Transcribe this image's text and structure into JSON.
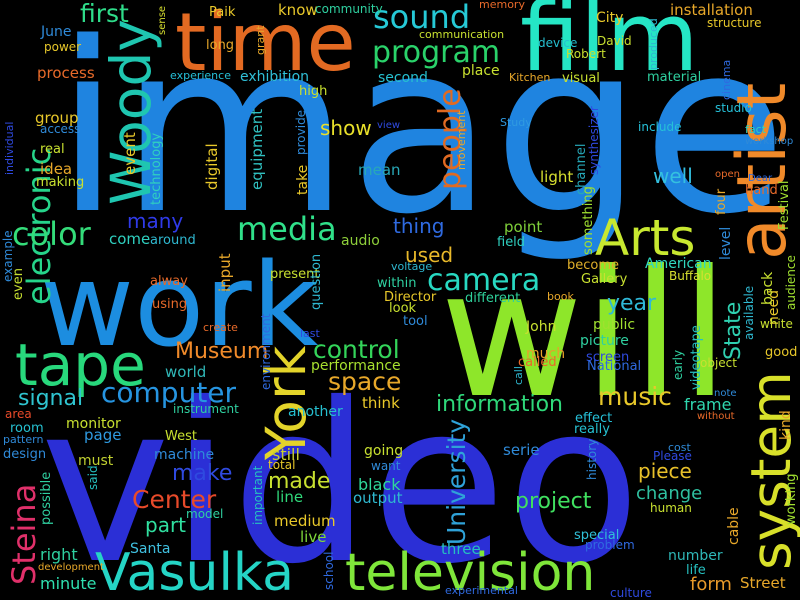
{
  "background": "#000000",
  "words": [
    {
      "text": "image",
      "color": "#1f84e0"
    },
    {
      "text": "video",
      "color": "#2b2fd6"
    },
    {
      "text": "will",
      "color": "#8ee62a"
    },
    {
      "text": "work",
      "color": "#1c8de0"
    },
    {
      "text": "film",
      "color": "#25e6c5"
    },
    {
      "text": "time",
      "color": "#e36a22"
    },
    {
      "text": "artist",
      "color": "#f08a2a"
    },
    {
      "text": "Vasulka",
      "color": "#25d5c6"
    },
    {
      "text": "television",
      "color": "#7fe63a"
    },
    {
      "text": "tape",
      "color": "#28d87c"
    },
    {
      "text": "Woody",
      "color": "#1fc6b0"
    },
    {
      "text": "York",
      "color": "#e3d42a"
    },
    {
      "text": "system",
      "color": "#d8e02a"
    },
    {
      "text": "Arts",
      "color": "#c8e830"
    },
    {
      "text": "electronic",
      "color": "#26d48a"
    },
    {
      "text": "media",
      "color": "#30e08a"
    },
    {
      "text": "sound",
      "color": "#26c9d6"
    },
    {
      "text": "program",
      "color": "#2ad26a"
    },
    {
      "text": "people",
      "color": "#e06a22"
    },
    {
      "text": "camera",
      "color": "#28d9c2"
    },
    {
      "text": "color",
      "color": "#34dc7a"
    },
    {
      "text": "Steina",
      "color": "#e0306a"
    },
    {
      "text": "computer",
      "color": "#2694e0"
    },
    {
      "text": "control",
      "color": "#34d45a"
    },
    {
      "text": "space",
      "color": "#e8a82a"
    },
    {
      "text": "music",
      "color": "#e8c82a"
    },
    {
      "text": "Center",
      "color": "#e84a2a"
    },
    {
      "text": "University",
      "color": "#2fa2d8"
    },
    {
      "text": "information",
      "color": "#2fd87a"
    },
    {
      "text": "project",
      "color": "#40e060"
    },
    {
      "text": "first",
      "color": "#2fdc8a"
    },
    {
      "text": "Museum",
      "color": "#f08a2a"
    },
    {
      "text": "signal",
      "color": "#2fc4d0"
    },
    {
      "text": "make",
      "color": "#2f4ae0"
    },
    {
      "text": "made",
      "color": "#c8e030"
    },
    {
      "text": "year",
      "color": "#2fb8d8"
    },
    {
      "text": "State",
      "color": "#2fd0b0"
    },
    {
      "text": "show",
      "color": "#e8e02a"
    },
    {
      "text": "thing",
      "color": "#2f6ae0"
    },
    {
      "text": "used",
      "color": "#e8b82a"
    },
    {
      "text": "well",
      "color": "#34c0e0"
    },
    {
      "text": "many",
      "color": "#2f3ae8"
    },
    {
      "text": "part",
      "color": "#30e0a0"
    },
    {
      "text": "frame",
      "color": "#30d8b0"
    },
    {
      "text": "piece",
      "color": "#e8c02a"
    },
    {
      "text": "change",
      "color": "#2fc0a0"
    },
    {
      "text": "form",
      "color": "#e89a2a"
    },
    {
      "text": "light",
      "color": "#d8e030"
    },
    {
      "text": "mean",
      "color": "#28a8b8"
    },
    {
      "text": "point",
      "color": "#7fd03a"
    },
    {
      "text": "audio",
      "color": "#8ecf3a"
    },
    {
      "text": "black",
      "color": "#2fd89a"
    },
    {
      "text": "output",
      "color": "#2fb8d0"
    },
    {
      "text": "still",
      "color": "#c8d030"
    },
    {
      "text": "line",
      "color": "#30d87a"
    },
    {
      "text": "medium",
      "color": "#e8c82a"
    },
    {
      "text": "live",
      "color": "#7fd83a"
    },
    {
      "text": "three",
      "color": "#26c0c0"
    },
    {
      "text": "Santa",
      "color": "#40c0e0"
    },
    {
      "text": "right",
      "color": "#2fd0a0"
    },
    {
      "text": "minute",
      "color": "#2fe0b0"
    },
    {
      "text": "machine",
      "color": "#2f8ad8"
    },
    {
      "text": "must",
      "color": "#c0d030"
    },
    {
      "text": "page",
      "color": "#2f9ae0"
    },
    {
      "text": "monitor",
      "color": "#c8e030"
    },
    {
      "text": "world",
      "color": "#30b8b8"
    },
    {
      "text": "performance",
      "color": "#a8e030"
    },
    {
      "text": "another",
      "color": "#26c0d0"
    },
    {
      "text": "think",
      "color": "#e8c82a"
    },
    {
      "text": "Director",
      "color": "#e8c82a"
    },
    {
      "text": "different",
      "color": "#2fd09a"
    },
    {
      "text": "John",
      "color": "#c8e030"
    },
    {
      "text": "much",
      "color": "#e8a02a"
    },
    {
      "text": "picture",
      "color": "#2fd0a0"
    },
    {
      "text": "public",
      "color": "#a0e030"
    },
    {
      "text": "screen",
      "color": "#2f4ae0"
    },
    {
      "text": "effect",
      "color": "#26c0d8"
    },
    {
      "text": "become",
      "color": "#e0b02a"
    },
    {
      "text": "American",
      "color": "#30d8c0"
    },
    {
      "text": "Buffalo",
      "color": "#d8e030"
    },
    {
      "text": "number",
      "color": "#2fb8b8"
    },
    {
      "text": "life",
      "color": "#26c0c0"
    },
    {
      "text": "Street",
      "color": "#e8a82a"
    },
    {
      "text": "sense",
      "color": "#d8e030"
    },
    {
      "text": "installation",
      "color": "#e8a82a"
    },
    {
      "text": "structure",
      "color": "#e8c82a"
    },
    {
      "text": "City",
      "color": "#e8c82a"
    },
    {
      "text": "David",
      "color": "#c8e030"
    },
    {
      "text": "Robert",
      "color": "#c8e030"
    },
    {
      "text": "device",
      "color": "#26c0d0"
    },
    {
      "text": "exhibition",
      "color": "#30c0d8"
    },
    {
      "text": "second",
      "color": "#26c0d0"
    },
    {
      "text": "place",
      "color": "#c8e030"
    },
    {
      "text": "Kitchen",
      "color": "#e8a82a"
    },
    {
      "text": "visual",
      "color": "#c8e030"
    },
    {
      "text": "material",
      "color": "#2fd0a0"
    },
    {
      "text": "include",
      "color": "#26c0d8"
    },
    {
      "text": "Study",
      "color": "#2f9ae0"
    },
    {
      "text": "studio",
      "color": "#26c0d8"
    },
    {
      "text": "channel",
      "color": "#26a8b8"
    },
    {
      "text": "synthesizer",
      "color": "#2f4ae0"
    },
    {
      "text": "level",
      "color": "#2f8ad8"
    },
    {
      "text": "Festival",
      "color": "#a0e030"
    },
    {
      "text": "four",
      "color": "#e8a82a"
    },
    {
      "text": "hand",
      "color": "#e86a2a"
    },
    {
      "text": "need",
      "color": "#e8c82a"
    },
    {
      "text": "back",
      "color": "#c8e030"
    },
    {
      "text": "working",
      "color": "#a0e030"
    },
    {
      "text": "kind",
      "color": "#e8a82a"
    },
    {
      "text": "white",
      "color": "#c8e030"
    },
    {
      "text": "good",
      "color": "#e8c82a"
    },
    {
      "text": "audience",
      "color": "#a0e030"
    },
    {
      "text": "available",
      "color": "#2fb8d0"
    },
    {
      "text": "videotape",
      "color": "#26c0c0"
    },
    {
      "text": "early",
      "color": "#2fd0a0"
    },
    {
      "text": "object",
      "color": "#c8e030"
    },
    {
      "text": "cable",
      "color": "#e8a82a"
    },
    {
      "text": "history",
      "color": "#2f8ad8"
    },
    {
      "text": "special",
      "color": "#30c0d8"
    },
    {
      "text": "problem",
      "color": "#2f6ae0"
    },
    {
      "text": "human",
      "color": "#c8e030"
    },
    {
      "text": "Please",
      "color": "#2f4ae0"
    },
    {
      "text": "cost",
      "color": "#2f8ad8"
    },
    {
      "text": "serie",
      "color": "#2f8ad8"
    },
    {
      "text": "going",
      "color": "#c8e030"
    },
    {
      "text": "want",
      "color": "#2f8ad8"
    },
    {
      "text": "total",
      "color": "#e8c82a"
    },
    {
      "text": "important",
      "color": "#26c0c0"
    },
    {
      "text": "model",
      "color": "#2fd0a0"
    },
    {
      "text": "West",
      "color": "#c8e030"
    },
    {
      "text": "instrument",
      "color": "#2fd0a0"
    },
    {
      "text": "design",
      "color": "#2f8ad8"
    },
    {
      "text": "room",
      "color": "#26c0d0"
    },
    {
      "text": "area",
      "color": "#e84a2a"
    },
    {
      "text": "pattern",
      "color": "#2f8ad8"
    },
    {
      "text": "possible",
      "color": "#2fd0a0"
    },
    {
      "text": "said",
      "color": "#26c0c0"
    },
    {
      "text": "development",
      "color": "#e8a82a"
    },
    {
      "text": "school",
      "color": "#2f6ae0"
    },
    {
      "text": "call",
      "color": "#2fb8d0"
    },
    {
      "text": "experimental",
      "color": "#2f6ae0"
    },
    {
      "text": "culture",
      "color": "#2f4ae0"
    },
    {
      "text": "book",
      "color": "#e8a82a"
    },
    {
      "text": "tool",
      "color": "#2f8ad8"
    },
    {
      "text": "look",
      "color": "#c8e030"
    },
    {
      "text": "called",
      "color": "#e86a2a"
    },
    {
      "text": "really",
      "color": "#26c0d0"
    },
    {
      "text": "National",
      "color": "#2f6ae0"
    },
    {
      "text": "Gallery",
      "color": "#c8e030"
    },
    {
      "text": "within",
      "color": "#2fd0a0"
    },
    {
      "text": "voltage",
      "color": "#2fb8d0"
    },
    {
      "text": "field",
      "color": "#2fd0c0"
    },
    {
      "text": "something",
      "color": "#a0e030"
    },
    {
      "text": "present",
      "color": "#c8e030"
    },
    {
      "text": "question",
      "color": "#2fb8d0"
    },
    {
      "text": "take",
      "color": "#e8c82a"
    },
    {
      "text": "provide",
      "color": "#2f8ad8"
    },
    {
      "text": "equipment",
      "color": "#30c0c0"
    },
    {
      "text": "digital",
      "color": "#e8c82a"
    },
    {
      "text": "input",
      "color": "#e8a82a"
    },
    {
      "text": "using",
      "color": "#e86a2a"
    },
    {
      "text": "alway",
      "color": "#e86a2a"
    },
    {
      "text": "create",
      "color": "#e86a2a"
    },
    {
      "text": "environment",
      "color": "#2f6ae0"
    },
    {
      "text": "last",
      "color": "#2f4ae0"
    },
    {
      "text": "example",
      "color": "#2f8ad8"
    },
    {
      "text": "even",
      "color": "#c8e030"
    },
    {
      "text": "around",
      "color": "#2fb8d0"
    },
    {
      "text": "come",
      "color": "#2fd0c0"
    },
    {
      "text": "event",
      "color": "#e8c82a"
    },
    {
      "text": "technology",
      "color": "#2fd0c0"
    },
    {
      "text": "idea",
      "color": "#e8a82a"
    },
    {
      "text": "making",
      "color": "#c8e030"
    },
    {
      "text": "real",
      "color": "#c8e030"
    },
    {
      "text": "access",
      "color": "#2f8ad8"
    },
    {
      "text": "group",
      "color": "#e8c82a"
    },
    {
      "text": "individual",
      "color": "#2f4ae0"
    },
    {
      "text": "process",
      "color": "#e86a2a"
    },
    {
      "text": "power",
      "color": "#e8c82a"
    },
    {
      "text": "June",
      "color": "#2f8ad8"
    },
    {
      "text": "Paik",
      "color": "#e8c82a"
    },
    {
      "text": "long",
      "color": "#e8a82a"
    },
    {
      "text": "grant",
      "color": "#e8a82a"
    },
    {
      "text": "know",
      "color": "#e8c82a"
    },
    {
      "text": "community",
      "color": "#2fd0a0"
    },
    {
      "text": "communication",
      "color": "#c8e030"
    },
    {
      "text": "memory",
      "color": "#e86a2a"
    },
    {
      "text": "produced",
      "color": "#2fb8d0"
    },
    {
      "text": "cinema",
      "color": "#2f6ae0"
    },
    {
      "text": "experience",
      "color": "#26c0d8"
    },
    {
      "text": "high",
      "color": "#c8e030"
    },
    {
      "text": "movement",
      "color": "#e8a82a"
    },
    {
      "text": "view",
      "color": "#2f4ae0"
    },
    {
      "text": "fact",
      "color": "#2fd0c0"
    },
    {
      "text": "workshop",
      "color": "#2f8ad8"
    },
    {
      "text": "open",
      "color": "#e86a2a"
    },
    {
      "text": "Dear",
      "color": "#2f6ae0"
    },
    {
      "text": "note",
      "color": "#2f8ad8"
    },
    {
      "text": "without",
      "color": "#e86a2a"
    }
  ]
}
